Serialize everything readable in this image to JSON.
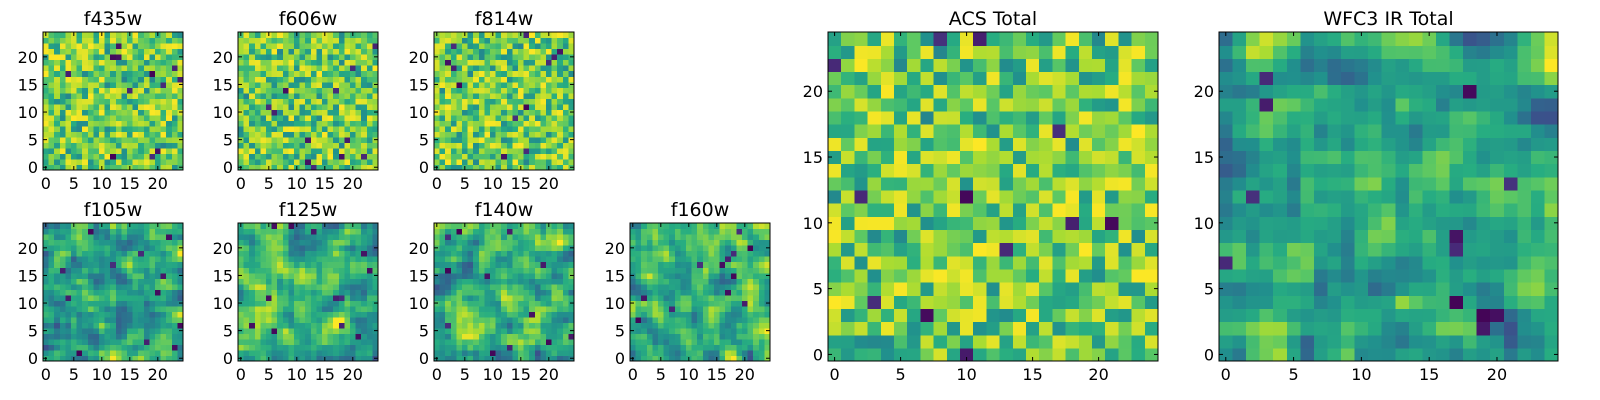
{
  "colormap": "viridis",
  "chart_data": [
    {
      "type": "heatmap",
      "title": "f435w",
      "grid": [
        25,
        25
      ],
      "x_ticks": [
        "0",
        "5",
        "10",
        "15",
        "20"
      ],
      "y_ticks": [
        "0",
        "5",
        "10",
        "15",
        "20"
      ],
      "xlim": [
        -0.5,
        24.5
      ],
      "ylim": [
        -0.5,
        24.5
      ],
      "seed": 11,
      "style": "noise"
    },
    {
      "type": "heatmap",
      "title": "f606w",
      "grid": [
        25,
        25
      ],
      "x_ticks": [
        "0",
        "5",
        "10",
        "15",
        "20"
      ],
      "y_ticks": [
        "0",
        "5",
        "10",
        "15",
        "20"
      ],
      "xlim": [
        -0.5,
        24.5
      ],
      "ylim": [
        -0.5,
        24.5
      ],
      "seed": 23,
      "style": "noise"
    },
    {
      "type": "heatmap",
      "title": "f814w",
      "grid": [
        25,
        25
      ],
      "x_ticks": [
        "0",
        "5",
        "10",
        "15",
        "20"
      ],
      "y_ticks": [
        "0",
        "5",
        "10",
        "15",
        "20"
      ],
      "xlim": [
        -0.5,
        24.5
      ],
      "ylim": [
        -0.5,
        24.5
      ],
      "seed": 37,
      "style": "noise"
    },
    {
      "type": "heatmap",
      "title": "f105w",
      "grid": [
        25,
        25
      ],
      "x_ticks": [
        "0",
        "5",
        "10",
        "15",
        "20"
      ],
      "y_ticks": [
        "0",
        "5",
        "10",
        "15",
        "20"
      ],
      "xlim": [
        -0.5,
        24.5
      ],
      "ylim": [
        -0.5,
        24.5
      ],
      "seed": 41,
      "style": "smooth"
    },
    {
      "type": "heatmap",
      "title": "f125w",
      "grid": [
        25,
        25
      ],
      "x_ticks": [
        "0",
        "5",
        "10",
        "15",
        "20"
      ],
      "y_ticks": [
        "0",
        "5",
        "10",
        "15",
        "20"
      ],
      "xlim": [
        -0.5,
        24.5
      ],
      "ylim": [
        -0.5,
        24.5
      ],
      "seed": 53,
      "style": "smooth"
    },
    {
      "type": "heatmap",
      "title": "f140w",
      "grid": [
        25,
        25
      ],
      "x_ticks": [
        "0",
        "5",
        "10",
        "15",
        "20"
      ],
      "y_ticks": [
        "0",
        "5",
        "10",
        "15",
        "20"
      ],
      "xlim": [
        -0.5,
        24.5
      ],
      "ylim": [
        -0.5,
        24.5
      ],
      "seed": 67,
      "style": "smooth"
    },
    {
      "type": "heatmap",
      "title": "f160w",
      "grid": [
        25,
        25
      ],
      "x_ticks": [
        "0",
        "5",
        "10",
        "15",
        "20"
      ],
      "y_ticks": [
        "0",
        "5",
        "10",
        "15",
        "20"
      ],
      "xlim": [
        -0.5,
        24.5
      ],
      "ylim": [
        -0.5,
        24.5
      ],
      "seed": 79,
      "style": "smooth"
    },
    {
      "type": "heatmap",
      "title": "ACS Total",
      "grid": [
        25,
        25
      ],
      "x_ticks": [
        "0",
        "5",
        "10",
        "15",
        "20"
      ],
      "y_ticks": [
        "0",
        "5",
        "10",
        "15",
        "20"
      ],
      "xlim": [
        -0.5,
        24.5
      ],
      "ylim": [
        -0.5,
        24.5
      ],
      "seed": 97,
      "style": "noise"
    },
    {
      "type": "heatmap",
      "title": "WFC3 IR Total",
      "grid": [
        25,
        25
      ],
      "x_ticks": [
        "0",
        "5",
        "10",
        "15",
        "20"
      ],
      "y_ticks": [
        "0",
        "5",
        "10",
        "15",
        "20"
      ],
      "xlim": [
        -0.5,
        24.5
      ],
      "ylim": [
        -0.5,
        24.5
      ],
      "seed": 113,
      "style": "smooth"
    }
  ]
}
